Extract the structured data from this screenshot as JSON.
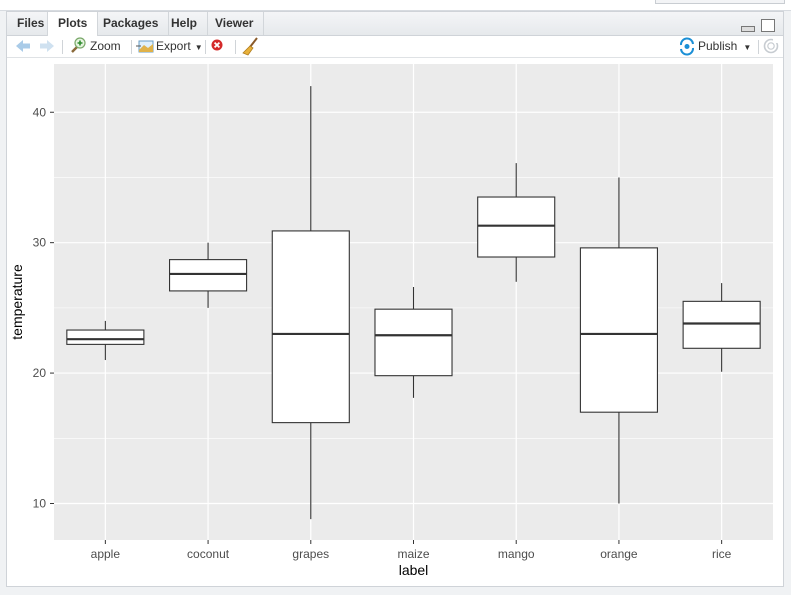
{
  "tabs": [
    {
      "label": "Files",
      "active": false
    },
    {
      "label": "Plots",
      "active": true
    },
    {
      "label": "Packages",
      "active": false
    },
    {
      "label": "Help",
      "active": false
    },
    {
      "label": "Viewer",
      "active": false
    }
  ],
  "toolbar": {
    "back_icon": "arrow-left-icon",
    "forward_icon": "arrow-right-icon",
    "zoom_label": "Zoom",
    "export_label": "Export",
    "remove_icon": "remove-plot-icon",
    "clear_icon": "broom-icon",
    "publish_label": "Publish",
    "refresh_icon": "refresh-icon"
  },
  "colors": {
    "panel_bg": "#EBEBEB",
    "grid": "#FFFFFF",
    "box_fill": "#FFFFFF",
    "box_line": "#333333",
    "publish_accent": "#1B8FD6"
  },
  "chart_data": {
    "type": "boxplot",
    "title": "",
    "xlabel": "label",
    "ylabel": "temperature",
    "ylim": [
      7.2,
      43.7
    ],
    "yticks": [
      10,
      20,
      30,
      40
    ],
    "grid": true,
    "legend": "none",
    "categories": [
      "apple",
      "coconut",
      "grapes",
      "maize",
      "mango",
      "orange",
      "rice"
    ],
    "boxes": [
      {
        "label": "apple",
        "min": 21.0,
        "q1": 22.2,
        "median": 22.6,
        "q3": 23.3,
        "max": 24.0
      },
      {
        "label": "coconut",
        "min": 25.0,
        "q1": 26.3,
        "median": 27.6,
        "q3": 28.7,
        "max": 30.0
      },
      {
        "label": "grapes",
        "min": 8.8,
        "q1": 16.2,
        "median": 23.0,
        "q3": 30.9,
        "max": 42.0
      },
      {
        "label": "maize",
        "min": 18.1,
        "q1": 19.8,
        "median": 22.9,
        "q3": 24.9,
        "max": 26.6
      },
      {
        "label": "mango",
        "min": 27.0,
        "q1": 28.9,
        "median": 31.3,
        "q3": 33.5,
        "max": 36.1
      },
      {
        "label": "orange",
        "min": 10.0,
        "q1": 17.0,
        "median": 23.0,
        "q3": 29.6,
        "max": 35.0
      },
      {
        "label": "rice",
        "min": 20.1,
        "q1": 21.9,
        "median": 23.8,
        "q3": 25.5,
        "max": 26.9
      }
    ]
  }
}
